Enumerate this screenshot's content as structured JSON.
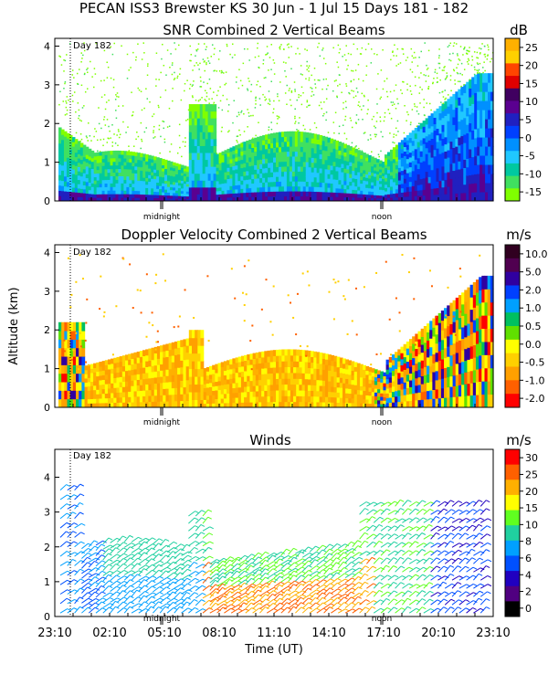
{
  "header": {
    "title": "PECAN ISS3 Brewster KS  30 Jun -  1 Jul 15 Days 181 - 182"
  },
  "chart_data": [
    {
      "type": "heatmap",
      "title": "SNR Combined 2 Vertical Beams",
      "unit": "dB",
      "ylabel": "",
      "ylim": [
        0,
        4.2
      ],
      "yticks": [
        "0",
        "1",
        "2",
        "3",
        "4"
      ],
      "day_marker": "Day 182",
      "time_markers": [
        "midnight",
        "noon"
      ],
      "colorbar": {
        "labels": [
          "25",
          "20",
          "15",
          "10",
          "5",
          "0",
          "-5",
          "-10",
          "-15"
        ],
        "colors": [
          "#ffb000",
          "#ffd000",
          "#ff4500",
          "#e00000",
          "#400060",
          "#5a0090",
          "#2020c0",
          "#0040ff",
          "#0090ff",
          "#20c8ff",
          "#00c8a0",
          "#40e060",
          "#80ff00"
        ]
      }
    },
    {
      "type": "heatmap",
      "title": "Doppler Velocity Combined 2 Vertical Beams",
      "unit": "m/s",
      "ylabel": "Altitude (km)",
      "ylim": [
        0,
        4.2
      ],
      "yticks": [
        "0",
        "1",
        "2",
        "3",
        "4"
      ],
      "day_marker": "Day 182",
      "time_markers": [
        "midnight",
        "noon"
      ],
      "colorbar": {
        "labels": [
          "10.0",
          "5.0",
          "2.0",
          "1.0",
          "0.5",
          "0.0",
          "-0.5",
          "-1.0",
          "-2.0"
        ],
        "colors": [
          "#300020",
          "#500050",
          "#3000a0",
          "#0040ff",
          "#00a0ff",
          "#00c060",
          "#60e000",
          "#ffff00",
          "#ffd000",
          "#ffa000",
          "#ff6000",
          "#ff0000"
        ]
      }
    },
    {
      "type": "scatter",
      "title": "Winds",
      "unit": "m/s",
      "xlabel": "Time (UT)",
      "ylim": [
        0,
        4.8
      ],
      "yticks": [
        "0",
        "1",
        "2",
        "3",
        "4"
      ],
      "xticks": [
        "23:10",
        "02:10",
        "05:10",
        "08:10",
        "11:10",
        "14:10",
        "17:10",
        "20:10",
        "23:10"
      ],
      "day_marker": "Day 182",
      "time_markers": [
        "midnight",
        "noon"
      ],
      "colorbar": {
        "labels": [
          "30",
          "25",
          "20",
          "15",
          "10",
          "8",
          "6",
          "4",
          "2",
          "0"
        ],
        "colors": [
          "#ff0000",
          "#ff6000",
          "#ffb000",
          "#ffff00",
          "#60ff20",
          "#20d0a0",
          "#00a0ff",
          "#0050ff",
          "#2000c0",
          "#500080",
          "#000000"
        ]
      }
    }
  ]
}
